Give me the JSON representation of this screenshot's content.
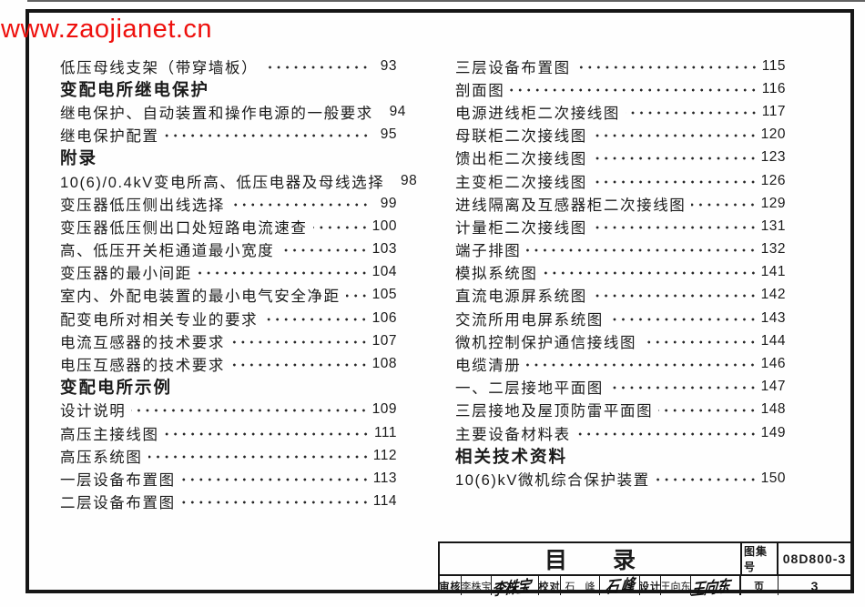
{
  "colors": {
    "watermark_red": "#ee100d",
    "ink": "#1b1b1b",
    "paper": "#fefefe"
  },
  "watermark": "www.zaojianet.cn",
  "toc": {
    "left_column": [
      {
        "type": "entry",
        "label": "低压母线支架（带穿墙板）",
        "page": "93"
      },
      {
        "type": "header",
        "label": "变配电所继电保护"
      },
      {
        "type": "entry",
        "label": "继电保护、自动装置和操作电源的一般要求",
        "page": "94"
      },
      {
        "type": "entry",
        "label": "继电保护配置",
        "page": "95"
      },
      {
        "type": "header",
        "label": "附录"
      },
      {
        "type": "entry",
        "label": "10(6)/0.4kV变电所高、低压电器及母线选择",
        "page": "98"
      },
      {
        "type": "entry",
        "label": "变压器低压侧出线选择",
        "page": "99"
      },
      {
        "type": "entry",
        "label": "变压器低压侧出口处短路电流速查",
        "page": "100"
      },
      {
        "type": "entry",
        "label": "高、低压开关柜通道最小宽度",
        "page": "103"
      },
      {
        "type": "entry",
        "label": "变压器的最小间距",
        "page": "104"
      },
      {
        "type": "entry",
        "label": "室内、外配电装置的最小电气安全净距",
        "page": "105"
      },
      {
        "type": "entry",
        "label": "配变电所对相关专业的要求",
        "page": "106"
      },
      {
        "type": "entry",
        "label": "电流互感器的技术要求",
        "page": "107"
      },
      {
        "type": "entry",
        "label": "电压互感器的技术要求",
        "page": "108"
      },
      {
        "type": "header",
        "label": "变配电所示例"
      },
      {
        "type": "entry",
        "label": "设计说明",
        "page": "109"
      },
      {
        "type": "entry",
        "label": "高压主接线图",
        "page": "111"
      },
      {
        "type": "entry",
        "label": "高压系统图",
        "page": "112"
      },
      {
        "type": "entry",
        "label": "一层设备布置图",
        "page": "113"
      },
      {
        "type": "entry",
        "label": "二层设备布置图",
        "page": "114"
      }
    ],
    "right_column": [
      {
        "type": "entry",
        "label": "三层设备布置图",
        "page": "115"
      },
      {
        "type": "entry",
        "label": "剖面图",
        "page": "116"
      },
      {
        "type": "entry",
        "label": "电源进线柜二次接线图",
        "page": "117"
      },
      {
        "type": "entry",
        "label": "母联柜二次接线图",
        "page": "120"
      },
      {
        "type": "entry",
        "label": "馈出柜二次接线图",
        "page": "123"
      },
      {
        "type": "entry",
        "label": "主变柜二次接线图",
        "page": "126"
      },
      {
        "type": "entry",
        "label": "进线隔离及互感器柜二次接线图",
        "page": "129"
      },
      {
        "type": "entry",
        "label": "计量柜二次接线图",
        "page": "131"
      },
      {
        "type": "entry",
        "label": "端子排图",
        "page": "132"
      },
      {
        "type": "entry",
        "label": "模拟系统图",
        "page": "141"
      },
      {
        "type": "entry",
        "label": "直流电源屏系统图",
        "page": "142"
      },
      {
        "type": "entry",
        "label": "交流所用电屏系统图",
        "page": "143"
      },
      {
        "type": "entry",
        "label": "微机控制保护通信接线图",
        "page": "144"
      },
      {
        "type": "entry",
        "label": "电缆清册",
        "page": "146"
      },
      {
        "type": "entry",
        "label": "一、二层接地平面图",
        "page": "147"
      },
      {
        "type": "entry",
        "label": "三层接地及屋顶防雷平面图",
        "page": "148"
      },
      {
        "type": "entry",
        "label": "主要设备材料表",
        "page": "149"
      },
      {
        "type": "header",
        "label": "相关技术资料"
      },
      {
        "type": "entry",
        "label": "10(6)kV微机综合保护装置",
        "page": "150"
      }
    ]
  },
  "title_block": {
    "title": "目　　录",
    "atlas_label": "图集号",
    "atlas_number": "08D800-3",
    "review_label": "审核",
    "review_name": "李株宝",
    "review_signature": "李株宝",
    "proof_label": "校对",
    "proof_name": "石　峰",
    "proof_signature": "石 峰",
    "design_label": "设计",
    "design_name": "王向东",
    "design_signature": "王向东",
    "page_label": "页",
    "page_number": "3"
  }
}
